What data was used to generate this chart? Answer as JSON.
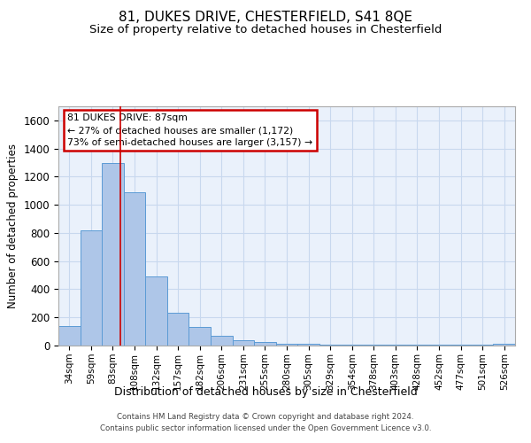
{
  "title": "81, DUKES DRIVE, CHESTERFIELD, S41 8QE",
  "subtitle": "Size of property relative to detached houses in Chesterfield",
  "xlabel": "Distribution of detached houses by size in Chesterfield",
  "ylabel": "Number of detached properties",
  "footer1": "Contains HM Land Registry data © Crown copyright and database right 2024.",
  "footer2": "Contains public sector information licensed under the Open Government Licence v3.0.",
  "bar_labels": [
    "34sqm",
    "59sqm",
    "83sqm",
    "108sqm",
    "132sqm",
    "157sqm",
    "182sqm",
    "206sqm",
    "231sqm",
    "255sqm",
    "280sqm",
    "305sqm",
    "329sqm",
    "354sqm",
    "378sqm",
    "403sqm",
    "428sqm",
    "452sqm",
    "477sqm",
    "501sqm",
    "526sqm"
  ],
  "bar_heights": [
    140,
    820,
    1300,
    1090,
    490,
    230,
    135,
    70,
    40,
    25,
    15,
    10,
    5,
    5,
    5,
    5,
    5,
    5,
    5,
    5,
    15
  ],
  "bar_color": "#aec6e8",
  "bar_edge_color": "#5b9bd5",
  "background_color": "#eaf1fb",
  "grid_color": "#c8d8ee",
  "vline_x": 2.35,
  "vline_color": "#cc0000",
  "annotation_text": "81 DUKES DRIVE: 87sqm\n← 27% of detached houses are smaller (1,172)\n73% of semi-detached houses are larger (3,157) →",
  "annotation_box_color": "#cc0000",
  "ylim": [
    0,
    1700
  ],
  "yticks": [
    0,
    200,
    400,
    600,
    800,
    1000,
    1200,
    1400,
    1600
  ],
  "title_fontsize": 11,
  "subtitle_fontsize": 9.5
}
